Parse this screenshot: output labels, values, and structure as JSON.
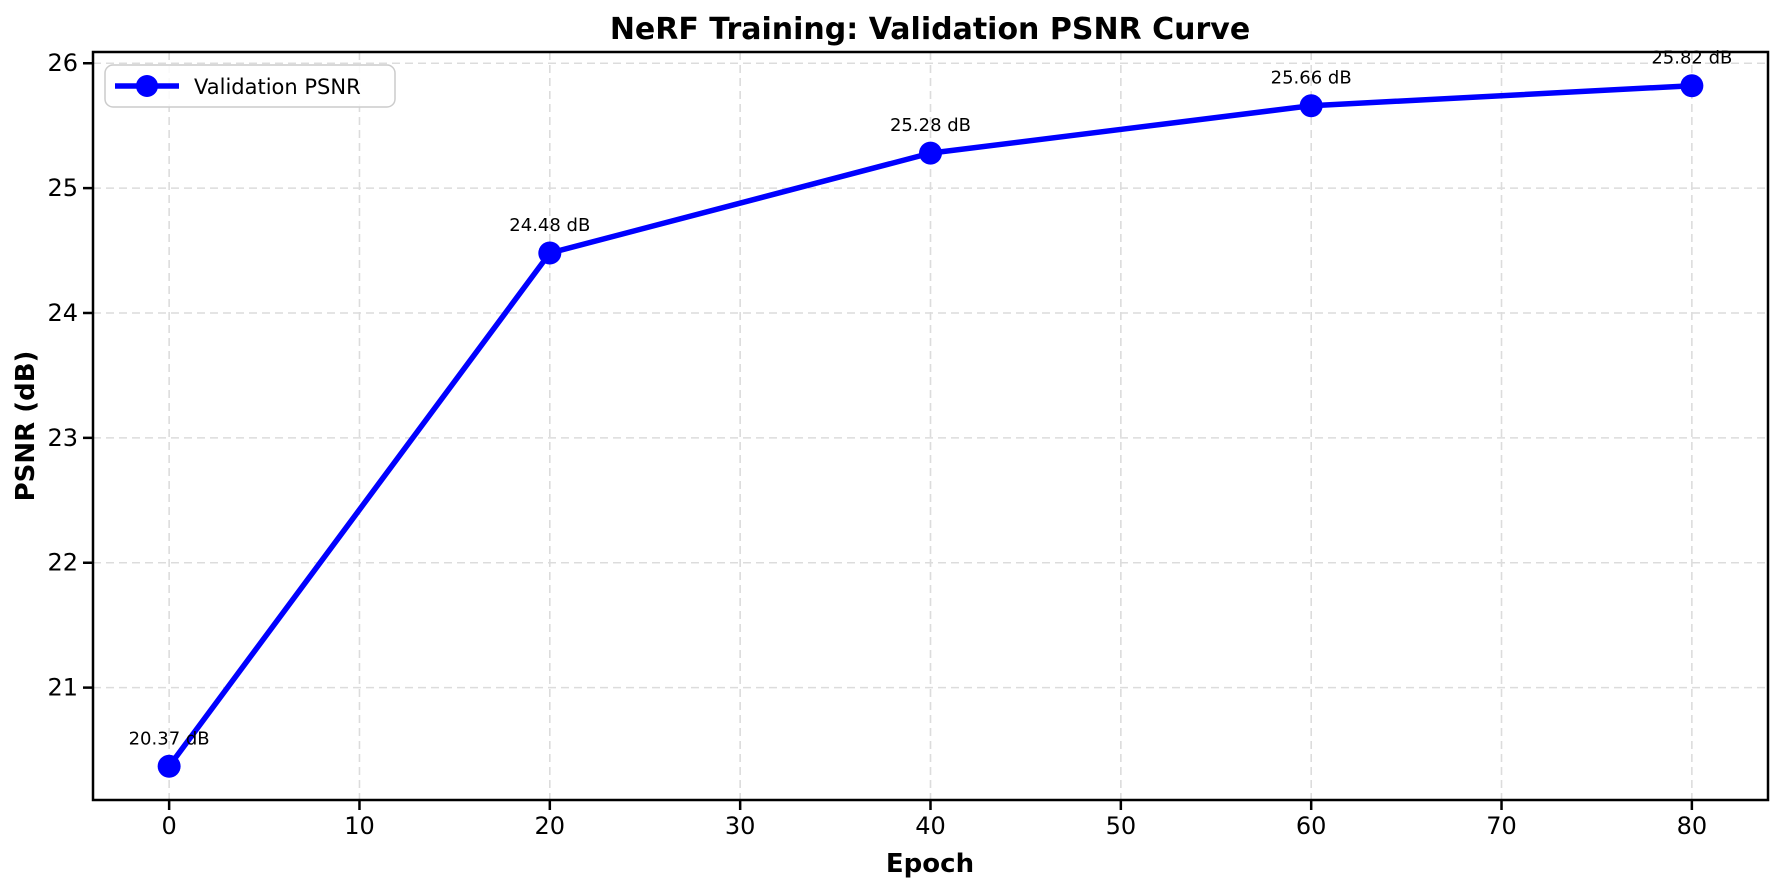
{
  "chart_data": {
    "type": "line",
    "title": "NeRF Training: Validation PSNR Curve",
    "xlabel": "Epoch",
    "ylabel": "PSNR (dB)",
    "x": [
      0,
      20,
      40,
      60,
      80
    ],
    "series": [
      {
        "name": "Validation PSNR",
        "values": [
          20.37,
          24.48,
          25.28,
          25.66,
          25.82
        ],
        "point_labels": [
          "20.37 dB",
          "24.48 dB",
          "25.28 dB",
          "25.66 dB",
          "25.82 dB"
        ],
        "color": "#0000ff"
      }
    ],
    "legend": {
      "position": "upper-left",
      "entries": [
        {
          "label": "Validation PSNR",
          "color": "#0000ff"
        }
      ]
    },
    "xticks": [
      0,
      10,
      20,
      30,
      40,
      50,
      60,
      70,
      80
    ],
    "yticks": [
      21,
      22,
      23,
      24,
      25,
      26
    ],
    "xlim": [
      -4,
      84
    ],
    "ylim": [
      20.1,
      26.09
    ],
    "grid": true,
    "grid_style": "dashed",
    "colors": {
      "line": "#0000ff",
      "grid": "#dcdcdc",
      "axis": "#000000",
      "background": "#ffffff",
      "legend_border": "#cccccc"
    }
  }
}
